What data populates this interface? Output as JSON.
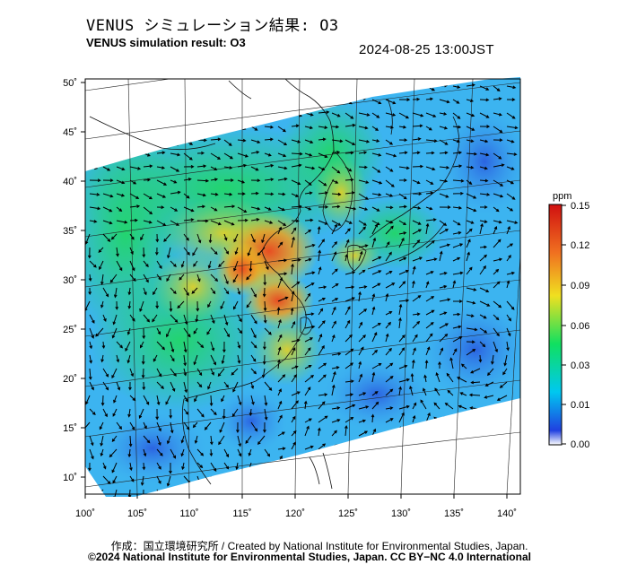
{
  "header": {
    "title_jp": "VENUS シミュレーション結果: O3",
    "title_en": "VENUS simulation result: O3",
    "timestamp": "2024-08-25 13:00JST"
  },
  "map": {
    "lon_ticks": [
      "100˚",
      "105˚",
      "110˚",
      "115˚",
      "120˚",
      "125˚",
      "130˚",
      "135˚",
      "140˚"
    ],
    "lat_ticks": [
      "50˚",
      "45˚",
      "40˚",
      "35˚",
      "30˚",
      "25˚",
      "20˚",
      "15˚",
      "10˚"
    ],
    "lon_range": [
      100,
      141
    ],
    "lat_range": [
      9,
      51
    ]
  },
  "colorbar": {
    "unit": "ppm",
    "labels": [
      "0.15",
      "0.12",
      "0.09",
      "0.06",
      "0.03",
      "0.01",
      "0.00"
    ],
    "colors": [
      "#ffffff",
      "#2040e0",
      "#00c8f0",
      "#10e060",
      "#f0e020",
      "#f07020",
      "#d01010"
    ]
  },
  "footer": {
    "credit_line1": "作成：国立環境研究所 / Created by National Institute for Environmental Studies, Japan.",
    "credit_line2": "©2024 National Institute for Environmental Studies, Japan. CC BY−NC 4.0 International"
  }
}
